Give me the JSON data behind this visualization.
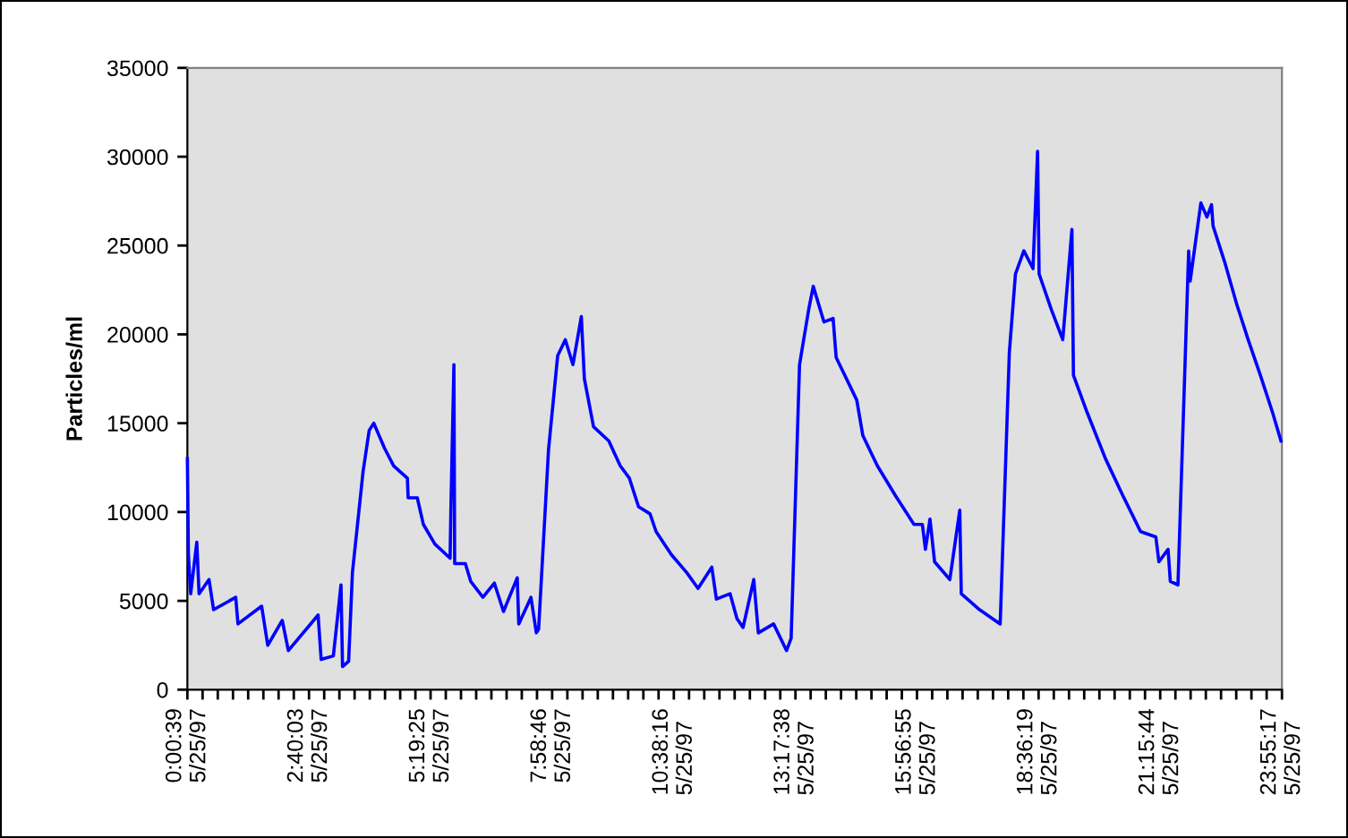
{
  "chart_data": {
    "type": "line",
    "ylabel": "Particles/ml",
    "x": [
      "1997-05-25T00:00:39",
      "1997-05-25T00:02",
      "1997-05-25T00:05",
      "1997-05-25T00:13",
      "1997-05-25T00:16",
      "1997-05-25T00:29",
      "1997-05-25T00:35",
      "1997-05-25T01:04",
      "1997-05-25T01:07",
      "1997-05-25T01:38",
      "1997-05-25T01:46",
      "1997-05-25T02:05",
      "1997-05-25T02:13",
      "1997-05-25T02:52",
      "1997-05-25T02:56",
      "1997-05-25T03:12",
      "1997-05-25T03:22",
      "1997-05-25T03:24",
      "1997-05-25T03:32",
      "1997-05-25T03:37",
      "1997-05-25T03:51",
      "1997-05-25T03:59",
      "1997-05-25T04:05",
      "1997-05-25T04:19",
      "1997-05-25T04:31",
      "1997-05-25T04:49",
      "1997-05-25T04:50",
      "1997-05-25T05:02",
      "1997-05-25T05:10",
      "1997-05-25T05:25",
      "1997-05-25T05:45",
      "1997-05-25T05:46",
      "1997-05-25T05:50",
      "1997-05-25T05:51",
      "1997-05-25T06:05",
      "1997-05-25T06:12",
      "1997-05-25T06:28",
      "1997-05-25T06:43",
      "1997-05-25T06:55",
      "1997-05-25T07:13",
      "1997-05-25T07:15",
      "1997-05-25T07:31",
      "1997-05-25T07:38",
      "1997-05-25T07:41",
      "1997-05-25T07:54",
      "1997-05-25T08:06",
      "1997-05-25T08:16",
      "1997-05-25T08:26",
      "1997-05-25T08:37",
      "1997-05-25T08:41",
      "1997-05-25T08:53",
      "1997-05-25T09:13",
      "1997-05-25T09:28",
      "1997-05-25T09:40",
      "1997-05-25T09:52",
      "1997-05-25T10:07",
      "1997-05-25T10:15",
      "1997-05-25T10:35",
      "1997-05-25T10:55",
      "1997-05-25T11:10",
      "1997-05-25T11:28",
      "1997-05-25T11:34",
      "1997-05-25T11:52",
      "1997-05-25T12:01",
      "1997-05-25T12:09",
      "1997-05-25T12:23",
      "1997-05-25T12:29",
      "1997-05-25T12:49",
      "1997-05-25T13:06",
      "1997-05-25T13:12",
      "1997-05-25T13:23",
      "1997-05-25T13:35",
      "1997-05-25T13:41",
      "1997-05-25T13:55",
      "1997-05-25T14:07",
      "1997-05-25T14:11",
      "1997-05-25T14:38",
      "1997-05-25T14:46",
      "1997-05-25T15:05",
      "1997-05-25T15:29",
      "1997-05-25T15:53",
      "1997-05-25T16:04",
      "1997-05-25T16:08",
      "1997-05-25T16:14",
      "1997-05-25T16:20",
      "1997-05-25T16:40",
      "1997-05-25T16:53",
      "1997-05-25T16:55",
      "1997-05-25T17:19",
      "1997-05-25T17:46",
      "1997-05-25T17:58",
      "1997-05-25T18:06",
      "1997-05-25T18:17",
      "1997-05-25T18:29",
      "1997-05-25T18:35",
      "1997-05-25T18:37",
      "1997-05-25T18:53",
      "1997-05-25T19:08",
      "1997-05-25T19:20",
      "1997-05-25T19:22",
      "1997-05-25T19:40",
      "1997-05-25T20:04",
      "1997-05-25T20:27",
      "1997-05-25T20:50",
      "1997-05-25T21:10",
      "1997-05-25T21:14",
      "1997-05-25T21:26",
      "1997-05-25T21:29",
      "1997-05-25T21:39",
      "1997-05-25T21:53",
      "1997-05-25T21:55",
      "1997-05-25T22:09",
      "1997-05-25T22:17",
      "1997-05-25T22:23",
      "1997-05-25T22:25",
      "1997-05-25T22:40",
      "1997-05-25T22:56",
      "1997-05-25T23:11",
      "1997-05-25T23:27",
      "1997-05-25T23:43",
      "1997-05-25T23:54"
    ],
    "series": [
      {
        "color": "#0000ff",
        "values": [
          13000,
          7600,
          5400,
          8300,
          5400,
          6200,
          4500,
          5200,
          3700,
          4700,
          2500,
          3900,
          2200,
          4200,
          1700,
          1900,
          5900,
          1300,
          1600,
          6600,
          12300,
          14600,
          15000,
          13600,
          12600,
          11900,
          10800,
          10800,
          9300,
          8200,
          7400,
          10100,
          18300,
          7100,
          7100,
          6100,
          5200,
          6000,
          4400,
          6300,
          3700,
          5200,
          3200,
          3400,
          13500,
          18800,
          19700,
          18300,
          21000,
          17500,
          14800,
          14000,
          12600,
          11900,
          10300,
          9900,
          8900,
          7600,
          6600,
          5700,
          6900,
          5100,
          5400,
          4000,
          3500,
          6200,
          3200,
          3700,
          2200,
          2900,
          18300,
          21400,
          22700,
          20700,
          20900,
          18700,
          16300,
          14300,
          12600,
          10900,
          9300,
          9300,
          7900,
          9600,
          7200,
          6200,
          10100,
          5400,
          4500,
          3700,
          19000,
          23400,
          24700,
          23700,
          30300,
          23400,
          21400,
          19700,
          25900,
          17700,
          15600,
          13000,
          10900,
          8900,
          8600,
          7200,
          7900,
          6100,
          5900,
          24700,
          23000,
          27400,
          26600,
          27300,
          26100,
          24100,
          21700,
          19700,
          17700,
          15600,
          14000
        ]
      }
    ],
    "xlim": [
      "1997-05-25T00:00:39",
      "1997-05-25T23:55:17"
    ],
    "xticks": [
      {
        "value": "1997-05-25T00:00:39",
        "label": "0:00:39\n5/25/97"
      },
      {
        "value": "1997-05-25T00:20:35",
        "label": null
      },
      {
        "value": "1997-05-25T00:40:30",
        "label": null
      },
      {
        "value": "1997-05-25T01:00:26",
        "label": null
      },
      {
        "value": "1997-05-25T01:20:21",
        "label": null
      },
      {
        "value": "1997-05-25T01:40:17",
        "label": null
      },
      {
        "value": "1997-05-25T02:00:12",
        "label": null
      },
      {
        "value": "1997-05-25T02:20:08",
        "label": null
      },
      {
        "value": "1997-05-25T02:40:03",
        "label": "2:40:03\n5/25/97"
      },
      {
        "value": "1997-05-25T02:59:59",
        "label": null
      },
      {
        "value": "1997-05-25T03:19:54",
        "label": null
      },
      {
        "value": "1997-05-25T03:39:50",
        "label": null
      },
      {
        "value": "1997-05-25T03:59:45",
        "label": null
      },
      {
        "value": "1997-05-25T04:19:41",
        "label": null
      },
      {
        "value": "1997-05-25T04:39:36",
        "label": null
      },
      {
        "value": "1997-05-25T04:59:32",
        "label": null
      },
      {
        "value": "1997-05-25T05:19:25",
        "label": "5:19:25\n5/25/97"
      },
      {
        "value": "1997-05-25T05:39:21",
        "label": null
      },
      {
        "value": "1997-05-25T05:59:16",
        "label": null
      },
      {
        "value": "1997-05-25T06:19:12",
        "label": null
      },
      {
        "value": "1997-05-25T06:39:07",
        "label": null
      },
      {
        "value": "1997-05-25T06:59:03",
        "label": null
      },
      {
        "value": "1997-05-25T07:18:58",
        "label": null
      },
      {
        "value": "1997-05-25T07:38:54",
        "label": null
      },
      {
        "value": "1997-05-25T07:58:46",
        "label": "7:58:46\n5/25/97"
      },
      {
        "value": "1997-05-25T08:18:42",
        "label": null
      },
      {
        "value": "1997-05-25T08:38:37",
        "label": null
      },
      {
        "value": "1997-05-25T08:58:33",
        "label": null
      },
      {
        "value": "1997-05-25T09:18:28",
        "label": null
      },
      {
        "value": "1997-05-25T09:38:24",
        "label": null
      },
      {
        "value": "1997-05-25T09:58:19",
        "label": null
      },
      {
        "value": "1997-05-25T10:18:15",
        "label": null
      },
      {
        "value": "1997-05-25T10:38:16",
        "label": "10:38:16\n5/25/97"
      },
      {
        "value": "1997-05-25T10:58:12",
        "label": null
      },
      {
        "value": "1997-05-25T11:18:07",
        "label": null
      },
      {
        "value": "1997-05-25T11:38:03",
        "label": null
      },
      {
        "value": "1997-05-25T11:57:58",
        "label": null
      },
      {
        "value": "1997-05-25T12:17:54",
        "label": null
      },
      {
        "value": "1997-05-25T12:37:49",
        "label": null
      },
      {
        "value": "1997-05-25T12:57:45",
        "label": null
      },
      {
        "value": "1997-05-25T13:17:38",
        "label": "13:17:38\n5/25/97"
      },
      {
        "value": "1997-05-25T13:37:34",
        "label": null
      },
      {
        "value": "1997-05-25T13:57:29",
        "label": null
      },
      {
        "value": "1997-05-25T14:17:25",
        "label": null
      },
      {
        "value": "1997-05-25T14:37:20",
        "label": null
      },
      {
        "value": "1997-05-25T14:57:16",
        "label": null
      },
      {
        "value": "1997-05-25T15:17:11",
        "label": null
      },
      {
        "value": "1997-05-25T15:37:07",
        "label": null
      },
      {
        "value": "1997-05-25T15:56:55",
        "label": "15:56:55\n5/25/97"
      },
      {
        "value": "1997-05-25T16:16:51",
        "label": null
      },
      {
        "value": "1997-05-25T16:36:46",
        "label": null
      },
      {
        "value": "1997-05-25T16:56:42",
        "label": null
      },
      {
        "value": "1997-05-25T17:16:37",
        "label": null
      },
      {
        "value": "1997-05-25T17:36:33",
        "label": null
      },
      {
        "value": "1997-05-25T17:56:28",
        "label": null
      },
      {
        "value": "1997-05-25T18:16:24",
        "label": null
      },
      {
        "value": "1997-05-25T18:36:19",
        "label": "18:36:19\n5/25/97"
      },
      {
        "value": "1997-05-25T18:56:15",
        "label": null
      },
      {
        "value": "1997-05-25T19:16:10",
        "label": null
      },
      {
        "value": "1997-05-25T19:36:06",
        "label": null
      },
      {
        "value": "1997-05-25T19:56:01",
        "label": null
      },
      {
        "value": "1997-05-25T20:15:57",
        "label": null
      },
      {
        "value": "1997-05-25T20:35:52",
        "label": null
      },
      {
        "value": "1997-05-25T20:55:48",
        "label": null
      },
      {
        "value": "1997-05-25T21:15:44",
        "label": "21:15:44\n5/25/97"
      },
      {
        "value": "1997-05-25T21:35:40",
        "label": null
      },
      {
        "value": "1997-05-25T21:55:35",
        "label": null
      },
      {
        "value": "1997-05-25T22:15:31",
        "label": null
      },
      {
        "value": "1997-05-25T22:35:26",
        "label": null
      },
      {
        "value": "1997-05-25T22:55:22",
        "label": null
      },
      {
        "value": "1997-05-25T23:15:17",
        "label": null
      },
      {
        "value": "1997-05-25T23:35:13",
        "label": null
      },
      {
        "value": "1997-05-25T23:55:17",
        "label": "23:55:17\n5/25/97"
      }
    ],
    "ylim": [
      0,
      35000
    ],
    "yticks": [
      0,
      5000,
      10000,
      15000,
      20000,
      25000,
      30000,
      35000
    ],
    "grid": false,
    "legend": false,
    "marker": "none",
    "line_style": "solid"
  }
}
